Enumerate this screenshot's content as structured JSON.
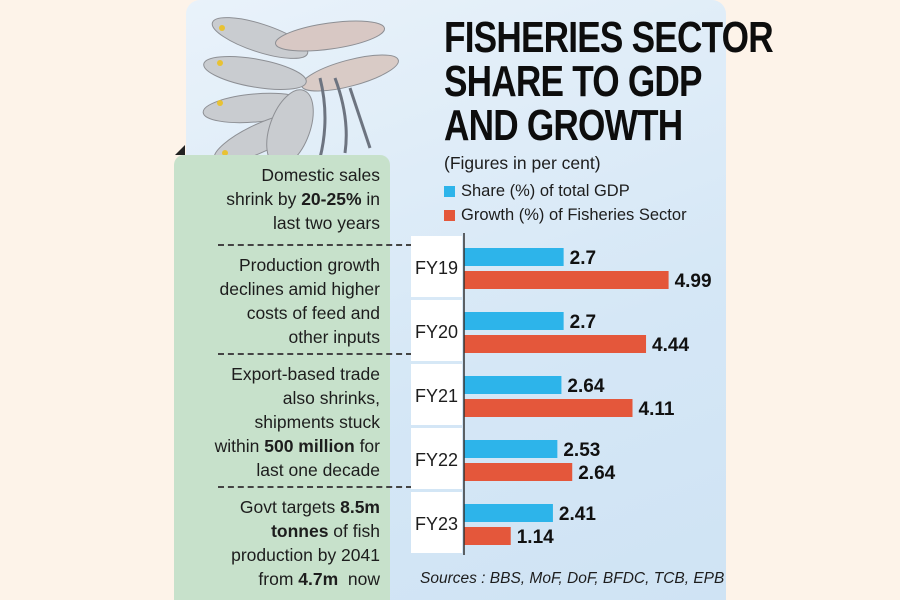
{
  "title_lines": [
    "FISHERIES SECTOR",
    "SHARE TO GDP",
    "AND GROWTH"
  ],
  "subtitle": "(Figures in per cent)",
  "notes": [
    [
      [
        "Domestic sales",
        false
      ],
      [
        "",
        false
      ],
      [
        "shrink by ",
        false
      ],
      [
        "20-25%",
        true
      ],
      [
        " in",
        false
      ],
      [
        "last two years",
        false
      ]
    ],
    [
      [
        "Production growth",
        false
      ],
      [
        "declines amid higher",
        false
      ],
      [
        "costs of feed and",
        false
      ],
      [
        "other inputs",
        false
      ]
    ],
    [
      [
        "Export-based trade",
        false
      ],
      [
        "also shrinks,",
        false
      ],
      [
        "shipments stuck",
        false
      ],
      [
        "within ",
        false
      ],
      [
        "500 million",
        true
      ],
      [
        " for",
        false
      ],
      [
        "last one decade",
        false
      ]
    ],
    [
      [
        "Govt targets ",
        false
      ],
      [
        "8.5m",
        true
      ],
      [
        "tonnes",
        true
      ],
      [
        " of fish",
        false
      ],
      [
        "production by 2041",
        false
      ],
      [
        "from ",
        false
      ],
      [
        "4.7m",
        true
      ],
      [
        "  now",
        false
      ]
    ]
  ],
  "note_texts": [
    "Domestic sales shrink by 20-25% in last two years",
    "Production growth declines amid higher costs of feed and other inputs",
    "Export-based trade also shrinks, shipments stuck within 500 million for last one decade",
    "Govt targets 8.5m tonnes of fish production by 2041 from 4.7m now"
  ],
  "sources": "Sources : BBS, MoF, DoF, BFDC, TCB, EPB",
  "colors": {
    "share": "#2db4ea",
    "growth": "#e4573b"
  },
  "chart_data": {
    "type": "bar",
    "orientation": "horizontal",
    "title": "FISHERIES SECTOR SHARE TO GDP AND GROWTH",
    "subtitle": "(Figures in per cent)",
    "categories": [
      "FY19",
      "FY20",
      "FY21",
      "FY22",
      "FY23"
    ],
    "series": [
      {
        "name": "Share (%) of total GDP",
        "values": [
          2.7,
          2.7,
          2.64,
          2.53,
          2.41
        ],
        "labels": [
          "2.7",
          "2.7",
          "2.64",
          "2.53",
          "2.41"
        ]
      },
      {
        "name": "Growth (%) of Fisheries Sector",
        "values": [
          4.99,
          4.44,
          4.11,
          2.64,
          1.14
        ],
        "labels": [
          "4.99",
          "4.44",
          "4.11",
          "2.64",
          "1.14"
        ]
      }
    ],
    "xlim": [
      0,
      5.5
    ],
    "legend": "top",
    "grid": false
  }
}
